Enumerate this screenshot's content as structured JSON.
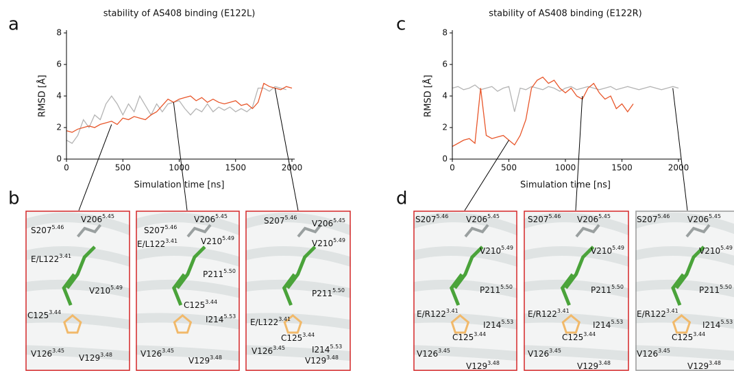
{
  "chart_data": [
    {
      "type": "line",
      "title": "stability of AS408 binding (E122L)",
      "x_label": "Simulation time [ns]",
      "y_label": "RMSD [Å]",
      "x": [
        0,
        50,
        100,
        150,
        200,
        250,
        300,
        350,
        400,
        450,
        500,
        550,
        600,
        650,
        700,
        750,
        800,
        850,
        900,
        950,
        1000,
        1050,
        1100,
        1150,
        1200,
        1250,
        1300,
        1350,
        1400,
        1450,
        1500,
        1550,
        1600,
        1650,
        1700,
        1750,
        1800,
        1850,
        1900,
        1950,
        2000
      ],
      "series": [
        {
          "color": "#b4b4b4",
          "values": [
            1.2,
            1.0,
            1.5,
            2.5,
            2.0,
            2.8,
            2.5,
            3.5,
            4.0,
            3.5,
            2.8,
            3.5,
            3.0,
            4.0,
            3.4,
            2.8,
            3.5,
            3.0,
            3.5,
            3.6,
            3.7,
            3.2,
            2.8,
            3.2,
            3.0,
            3.5,
            3.0,
            3.3,
            3.1,
            3.3,
            3.0,
            3.2,
            3.0,
            3.3,
            4.5,
            4.5,
            4.3,
            4.6,
            4.5,
            4.4,
            null
          ]
        },
        {
          "color": "#e8562a",
          "values": [
            1.8,
            1.7,
            1.9,
            2.0,
            2.1,
            2.0,
            2.2,
            2.3,
            2.4,
            2.2,
            2.6,
            2.5,
            2.7,
            2.6,
            2.5,
            2.8,
            3.0,
            3.4,
            3.8,
            3.6,
            3.8,
            3.9,
            4.0,
            3.7,
            3.9,
            3.6,
            3.8,
            3.6,
            3.5,
            3.6,
            3.7,
            3.4,
            3.5,
            3.2,
            3.6,
            4.8,
            4.6,
            4.5,
            4.4,
            4.6,
            4.5
          ]
        }
      ],
      "xlim": [
        0,
        2000
      ],
      "xticks": [
        0,
        500,
        1000,
        1500,
        2000
      ],
      "ylim": [
        0,
        8
      ],
      "yticks": [
        0,
        2,
        4,
        6,
        8
      ]
    },
    {
      "type": "line",
      "title": "stability of AS408 binding (E122R)",
      "x_label": "Simulation time [ns]",
      "y_label": "RMSD [Å]",
      "x": [
        0,
        50,
        100,
        150,
        200,
        250,
        300,
        350,
        400,
        450,
        500,
        550,
        600,
        650,
        700,
        750,
        800,
        850,
        900,
        950,
        1000,
        1050,
        1100,
        1150,
        1200,
        1250,
        1300,
        1350,
        1400,
        1450,
        1500,
        1550,
        1600,
        1650,
        1700,
        1750,
        1800,
        1850,
        1900,
        1950,
        2000
      ],
      "series": [
        {
          "color": "#b4b4b4",
          "values": [
            4.5,
            4.6,
            4.4,
            4.5,
            4.7,
            4.4,
            4.5,
            4.6,
            4.3,
            4.5,
            4.6,
            3.0,
            4.5,
            4.4,
            4.6,
            4.5,
            4.4,
            4.6,
            4.5,
            4.3,
            4.5,
            4.6,
            4.4,
            4.5,
            4.6,
            4.5,
            4.4,
            4.5,
            4.6,
            4.4,
            4.5,
            4.6,
            4.5,
            4.4,
            4.5,
            4.6,
            4.5,
            4.4,
            4.5,
            4.6,
            4.5
          ]
        },
        {
          "color": "#e8562a",
          "values": [
            0.8,
            1.0,
            1.2,
            1.3,
            1.0,
            4.5,
            1.5,
            1.3,
            1.4,
            1.5,
            1.2,
            0.9,
            1.5,
            2.5,
            4.5,
            5.0,
            5.2,
            4.8,
            5.0,
            4.5,
            4.2,
            4.5,
            4.0,
            3.8,
            4.5,
            4.8,
            4.2,
            3.8,
            4.0,
            3.2,
            3.5,
            3.0,
            3.5,
            null,
            null,
            null,
            null,
            null,
            null,
            null,
            null
          ]
        }
      ],
      "xlim": [
        0,
        2000
      ],
      "xticks": [
        0,
        500,
        1000,
        1500,
        2000
      ],
      "ylim": [
        0,
        8
      ],
      "yticks": [
        0,
        2,
        4,
        6,
        8
      ]
    }
  ],
  "panel_letters": [
    "a",
    "b",
    "c",
    "d"
  ],
  "structure_panels": [
    {
      "labels": [
        {
          "text": "S207",
          "sup": "5.46"
        },
        {
          "text": "V206",
          "sup": "5.45"
        },
        {
          "text": "E/L122",
          "sup": "3.41"
        },
        {
          "text": "V210",
          "sup": "5.49"
        },
        {
          "text": "C125",
          "sup": "3.44"
        },
        {
          "text": "V126",
          "sup": "3.45"
        },
        {
          "text": "V129",
          "sup": "3.48"
        }
      ]
    },
    {
      "labels": [
        {
          "text": "S207",
          "sup": "5.46"
        },
        {
          "text": "V206",
          "sup": "5.45"
        },
        {
          "text": "V210",
          "sup": "5.49"
        },
        {
          "text": "E/L122",
          "sup": "3.41"
        },
        {
          "text": "P211",
          "sup": "5.50"
        },
        {
          "text": "C125",
          "sup": "3.44"
        },
        {
          "text": "I214",
          "sup": "5.53"
        },
        {
          "text": "V126",
          "sup": "3.45"
        },
        {
          "text": "V129",
          "sup": "3.48"
        }
      ]
    },
    {
      "labels": [
        {
          "text": "S207",
          "sup": "5.46"
        },
        {
          "text": "V206",
          "sup": "5.45"
        },
        {
          "text": "V210",
          "sup": "5.49"
        },
        {
          "text": "P211",
          "sup": "5.50"
        },
        {
          "text": "E/L122",
          "sup": "3.41"
        },
        {
          "text": "C125",
          "sup": "3.44"
        },
        {
          "text": "I214",
          "sup": "5.53"
        },
        {
          "text": "V126",
          "sup": "3.45"
        },
        {
          "text": "V129",
          "sup": "3.48"
        }
      ]
    },
    {
      "labels": [
        {
          "text": "S207",
          "sup": "5.46"
        },
        {
          "text": "V206",
          "sup": "5.45"
        },
        {
          "text": "V210",
          "sup": "5.49"
        },
        {
          "text": "P211",
          "sup": "5.50"
        },
        {
          "text": "E/R122",
          "sup": "3.41"
        },
        {
          "text": "I214",
          "sup": "5.53"
        },
        {
          "text": "C125",
          "sup": "3.44"
        },
        {
          "text": "V126",
          "sup": "3.45"
        },
        {
          "text": "V129",
          "sup": "3.48"
        }
      ]
    },
    {
      "labels": [
        {
          "text": "S207",
          "sup": "5.46"
        },
        {
          "text": "V206",
          "sup": "5.45"
        },
        {
          "text": "V210",
          "sup": "5.49"
        },
        {
          "text": "P211",
          "sup": "5.50"
        },
        {
          "text": "E/R122",
          "sup": "3.41"
        },
        {
          "text": "I214",
          "sup": "5.53"
        },
        {
          "text": "C125",
          "sup": "3.44"
        },
        {
          "text": "V126",
          "sup": "3.45"
        },
        {
          "text": "V129",
          "sup": "3.48"
        }
      ]
    },
    {
      "labels": [
        {
          "text": "S207",
          "sup": "5.46"
        },
        {
          "text": "V206",
          "sup": "5.45"
        },
        {
          "text": "V210",
          "sup": "5.49"
        },
        {
          "text": "P211",
          "sup": "5.50"
        },
        {
          "text": "E/R122",
          "sup": "3.41"
        },
        {
          "text": "I214",
          "sup": "5.53"
        },
        {
          "text": "C125",
          "sup": "3.44"
        },
        {
          "text": "V126",
          "sup": "3.45"
        },
        {
          "text": "V129",
          "sup": "3.48"
        }
      ]
    }
  ]
}
